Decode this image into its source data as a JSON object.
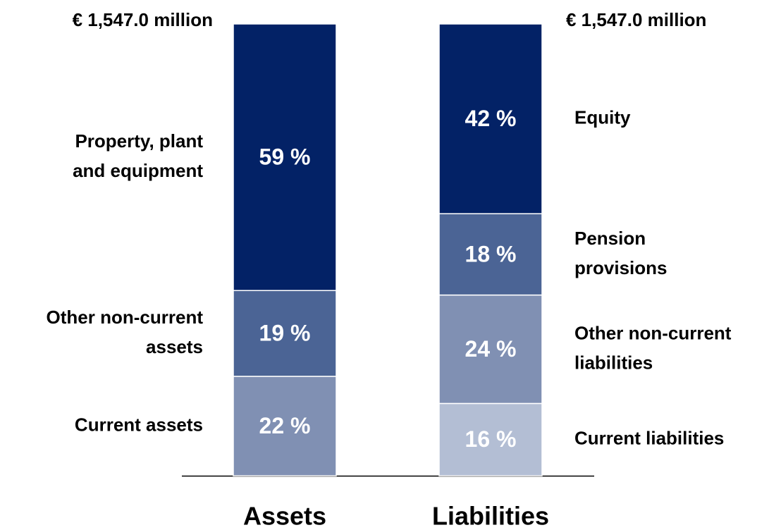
{
  "chart_data": {
    "type": "stacked_bar",
    "categories": [
      "Assets",
      "Liabilities"
    ],
    "total_labels": [
      "€ 1,547.0 million",
      "€ 1,547.0 million"
    ],
    "ylim": [
      0,
      100
    ],
    "bars": [
      {
        "segments": [
          {
            "name": [
              "Current assets"
            ],
            "value": 22,
            "value_label": "22 %",
            "color": "#8090b3"
          },
          {
            "name": [
              "Other non-current",
              "assets"
            ],
            "value": 19,
            "value_label": "19 %",
            "color": "#4b6495"
          },
          {
            "name": [
              "Property, plant",
              "and equipment"
            ],
            "value": 59,
            "value_label": "59 %",
            "color": "#032266"
          }
        ]
      },
      {
        "segments": [
          {
            "name": [
              "Current liabilities"
            ],
            "value": 16,
            "value_label": "16 %",
            "color": "#b3bed4"
          },
          {
            "name": [
              "Other non-current",
              "liabilities"
            ],
            "value": 24,
            "value_label": "24 %",
            "color": "#8090b3"
          },
          {
            "name": [
              "Pension",
              "provisions"
            ],
            "value": 18,
            "value_label": "18 %",
            "color": "#4b6495"
          },
          {
            "name": [
              "Equity"
            ],
            "value": 42,
            "value_label": "42 %",
            "color": "#032266"
          }
        ]
      }
    ]
  }
}
